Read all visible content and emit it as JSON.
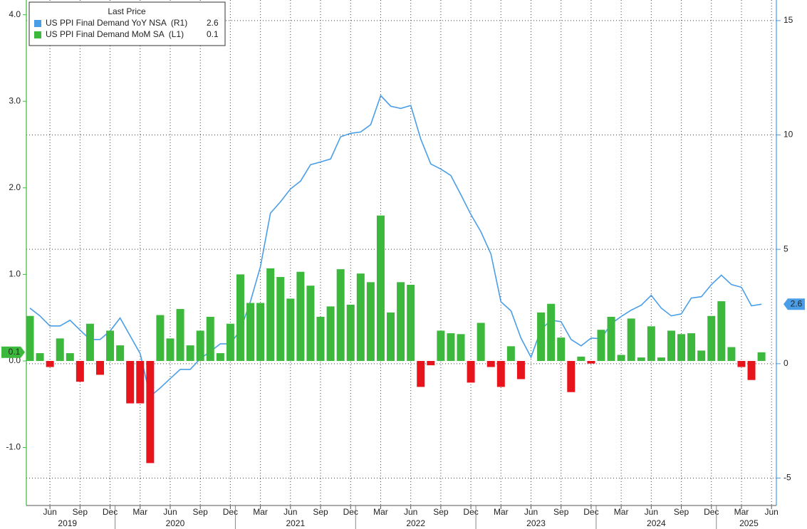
{
  "chart_data": {
    "type": "bar",
    "legend_title": "Last Price",
    "categories": [
      "2019-04",
      "2019-05",
      "2019-06",
      "2019-07",
      "2019-08",
      "2019-09",
      "2019-10",
      "2019-11",
      "2019-12",
      "2020-01",
      "2020-02",
      "2020-03",
      "2020-04",
      "2020-05",
      "2020-06",
      "2020-07",
      "2020-08",
      "2020-09",
      "2020-10",
      "2020-11",
      "2020-12",
      "2021-01",
      "2021-02",
      "2021-03",
      "2021-04",
      "2021-05",
      "2021-06",
      "2021-07",
      "2021-08",
      "2021-09",
      "2021-10",
      "2021-11",
      "2021-12",
      "2022-01",
      "2022-02",
      "2022-03",
      "2022-04",
      "2022-05",
      "2022-06",
      "2022-07",
      "2022-08",
      "2022-09",
      "2022-10",
      "2022-11",
      "2022-12",
      "2023-01",
      "2023-02",
      "2023-03",
      "2023-04",
      "2023-05",
      "2023-06",
      "2023-07",
      "2023-08",
      "2023-09",
      "2023-10",
      "2023-11",
      "2023-12",
      "2024-01",
      "2024-02",
      "2024-03",
      "2024-04",
      "2024-05",
      "2024-06",
      "2024-07",
      "2024-08",
      "2024-09",
      "2024-10",
      "2024-11",
      "2024-12",
      "2025-01",
      "2025-02",
      "2025-03",
      "2025-04",
      "2025-05"
    ],
    "series": [
      {
        "name": "US PPI Final Demand YoY NSA  (R1)",
        "type": "line",
        "axis": "y2",
        "color": "#4a9ee8",
        "values": [
          2.43,
          2.09,
          1.65,
          1.65,
          1.9,
          1.47,
          1.06,
          1.06,
          1.43,
          2.0,
          1.22,
          0.44,
          -1.43,
          -1.06,
          -0.65,
          -0.25,
          -0.25,
          0.22,
          0.53,
          0.87,
          0.87,
          1.47,
          2.71,
          4.24,
          6.58,
          7.08,
          7.64,
          7.98,
          8.7,
          8.82,
          8.95,
          9.92,
          10.07,
          10.13,
          10.45,
          11.72,
          11.26,
          11.16,
          11.29,
          9.82,
          8.73,
          8.51,
          8.23,
          7.39,
          6.52,
          5.77,
          4.8,
          2.71,
          2.31,
          1.12,
          0.28,
          1.5,
          1.9,
          1.84,
          1.06,
          0.78,
          1.12,
          1.09,
          1.75,
          2.06,
          2.34,
          2.56,
          2.99,
          2.43,
          2.09,
          2.18,
          2.87,
          2.93,
          3.46,
          3.87,
          3.46,
          3.34,
          2.53,
          2.6
        ]
      },
      {
        "name": "US PPI Final Demand MoM SA  (L1)",
        "type": "bar",
        "axis": "y",
        "color": "#3cb93c",
        "negative_color": "#e8141c",
        "values": [
          0.52,
          0.09,
          -0.07,
          0.26,
          0.09,
          -0.24,
          0.43,
          -0.16,
          0.35,
          0.18,
          -0.49,
          -0.49,
          -1.18,
          0.53,
          0.26,
          0.6,
          0.18,
          0.35,
          0.51,
          0.09,
          0.43,
          1.0,
          0.67,
          0.67,
          1.07,
          0.97,
          0.72,
          1.03,
          0.87,
          0.51,
          0.63,
          1.06,
          0.65,
          1.01,
          0.91,
          1.68,
          0.56,
          0.91,
          0.88,
          -0.3,
          -0.05,
          0.35,
          0.32,
          0.31,
          -0.25,
          0.44,
          -0.07,
          -0.3,
          0.17,
          -0.21,
          0.0,
          0.56,
          0.66,
          0.27,
          -0.36,
          0.05,
          -0.03,
          0.36,
          0.51,
          0.07,
          0.49,
          0.04,
          0.4,
          0.04,
          0.35,
          0.31,
          0.32,
          0.12,
          0.52,
          0.69,
          0.16,
          -0.07,
          -0.22,
          0.1
        ]
      }
    ],
    "ylim": [
      -1.67,
      4.17
    ],
    "yticks": [
      {
        "value": 4,
        "label": "4.0"
      },
      {
        "value": 3,
        "label": "3.0"
      },
      {
        "value": 2,
        "label": "2.0"
      },
      {
        "value": 1,
        "label": "1.0"
      },
      {
        "value": 0,
        "label": "0.0"
      },
      {
        "value": -1,
        "label": "-1.0"
      }
    ],
    "y2lim": [
      -6.2,
      15.9
    ],
    "y2ticks": [
      15,
      10,
      5,
      0,
      -5
    ],
    "xticks": [
      {
        "value": "2019-06",
        "label": "Jun"
      },
      {
        "value": "2019-09",
        "label": "Sep"
      },
      {
        "value": "2019-12",
        "label": "Dec"
      },
      {
        "value": "2020-03",
        "label": "Mar"
      },
      {
        "value": "2020-06",
        "label": "Jun"
      },
      {
        "value": "2020-09",
        "label": "Sep"
      },
      {
        "value": "2020-12",
        "label": "Dec"
      },
      {
        "value": "2021-03",
        "label": "Mar"
      },
      {
        "value": "2021-06",
        "label": "Jun"
      },
      {
        "value": "2021-09",
        "label": "Sep"
      },
      {
        "value": "2021-12",
        "label": "Dec"
      },
      {
        "value": "2022-03",
        "label": "Mar"
      },
      {
        "value": "2022-06",
        "label": "Jun"
      },
      {
        "value": "2022-09",
        "label": "Sep"
      },
      {
        "value": "2022-12",
        "label": "Dec"
      },
      {
        "value": "2023-03",
        "label": "Mar"
      },
      {
        "value": "2023-06",
        "label": "Jun"
      },
      {
        "value": "2023-09",
        "label": "Sep"
      },
      {
        "value": "2023-12",
        "label": "Dec"
      },
      {
        "value": "2024-03",
        "label": "Mar"
      },
      {
        "value": "2024-06",
        "label": "Jun"
      },
      {
        "value": "2024-09",
        "label": "Sep"
      },
      {
        "value": "2024-12",
        "label": "Dec"
      },
      {
        "value": "2025-03",
        "label": "Mar"
      },
      {
        "value": "2025-06",
        "label": "Jun"
      }
    ],
    "year_labels": [
      "2019",
      "2020",
      "2021",
      "2022",
      "2023",
      "2024",
      "2025"
    ],
    "grid": true
  }
}
